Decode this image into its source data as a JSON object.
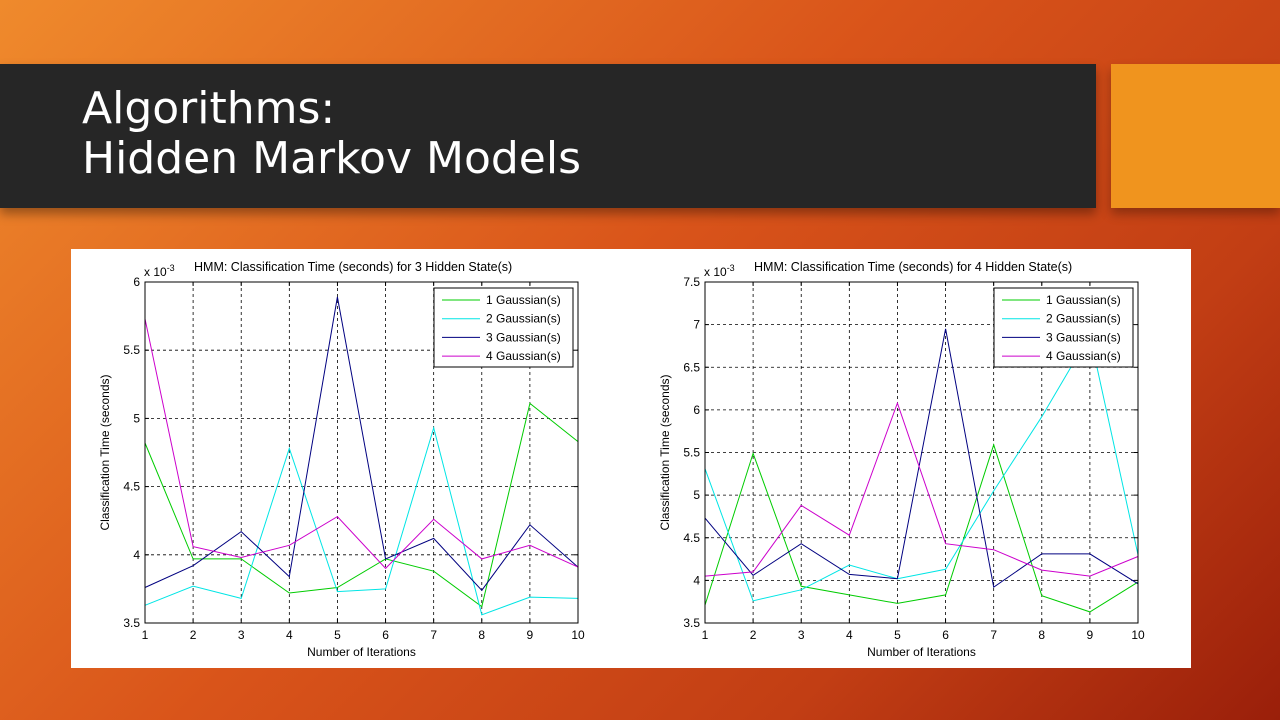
{
  "slide": {
    "title_line1": "Algorithms:",
    "title_line2": "Hidden Markov Models"
  },
  "chart_data": [
    {
      "type": "line",
      "title": "HMM: Classification Time (seconds) for 3 Hidden State(s)",
      "xlabel": "Number of Iterations",
      "ylabel": "Classification Time (seconds)",
      "exponent_label": "x 10",
      "exponent_power": "-3",
      "x": [
        1,
        2,
        3,
        4,
        5,
        6,
        7,
        8,
        9,
        10
      ],
      "xlim": [
        1,
        10
      ],
      "ylim": [
        3.5,
        6
      ],
      "yticks": [
        "3.5",
        "4",
        "4.5",
        "5",
        "5.5",
        "6"
      ],
      "grid": true,
      "legend_position": "top-right",
      "series": [
        {
          "name": "1 Gaussian(s)",
          "color": "#00cc00",
          "values": [
            4.82,
            3.97,
            3.97,
            3.72,
            3.76,
            3.97,
            3.88,
            3.62,
            5.11,
            4.83
          ]
        },
        {
          "name": "2 Gaussian(s)",
          "color": "#00e5e5",
          "values": [
            3.63,
            3.77,
            3.68,
            4.78,
            3.73,
            3.75,
            4.93,
            3.56,
            3.69,
            3.68
          ]
        },
        {
          "name": "3 Gaussian(s)",
          "color": "#000080",
          "values": [
            3.76,
            3.92,
            4.17,
            3.84,
            5.89,
            3.97,
            4.12,
            3.74,
            4.22,
            3.91
          ]
        },
        {
          "name": "4 Gaussian(s)",
          "color": "#cc00cc",
          "values": [
            5.73,
            4.06,
            3.98,
            4.07,
            4.28,
            3.9,
            4.26,
            3.97,
            4.07,
            3.91
          ]
        }
      ]
    },
    {
      "type": "line",
      "title": "HMM: Classification Time (seconds) for 4 Hidden State(s)",
      "xlabel": "Number of Iterations",
      "ylabel": "Classification Time (seconds)",
      "exponent_label": "x 10",
      "exponent_power": "-3",
      "x": [
        1,
        2,
        3,
        4,
        5,
        6,
        7,
        8,
        9,
        10
      ],
      "xlim": [
        1,
        10
      ],
      "ylim": [
        3.5,
        7.5
      ],
      "yticks": [
        "3.5",
        "4",
        "4.5",
        "5",
        "5.5",
        "6",
        "6.5",
        "7",
        "7.5"
      ],
      "grid": true,
      "legend_position": "top-right",
      "series": [
        {
          "name": "1 Gaussian(s)",
          "color": "#00cc00",
          "values": [
            3.71,
            5.49,
            3.93,
            3.83,
            3.73,
            3.83,
            5.59,
            3.82,
            3.63,
            3.98
          ]
        },
        {
          "name": "2 Gaussian(s)",
          "color": "#00e5e5",
          "values": [
            5.31,
            3.76,
            3.89,
            4.18,
            4.02,
            4.13,
            5.05,
            5.92,
            6.88,
            4.3
          ]
        },
        {
          "name": "3 Gaussian(s)",
          "color": "#000080",
          "values": [
            4.73,
            4.06,
            4.43,
            4.07,
            4.02,
            6.95,
            3.92,
            4.31,
            4.31,
            3.96
          ]
        },
        {
          "name": "4 Gaussian(s)",
          "color": "#cc00cc",
          "values": [
            4.05,
            4.1,
            4.88,
            4.53,
            6.08,
            4.43,
            4.36,
            4.12,
            4.05,
            4.28
          ]
        }
      ]
    }
  ]
}
